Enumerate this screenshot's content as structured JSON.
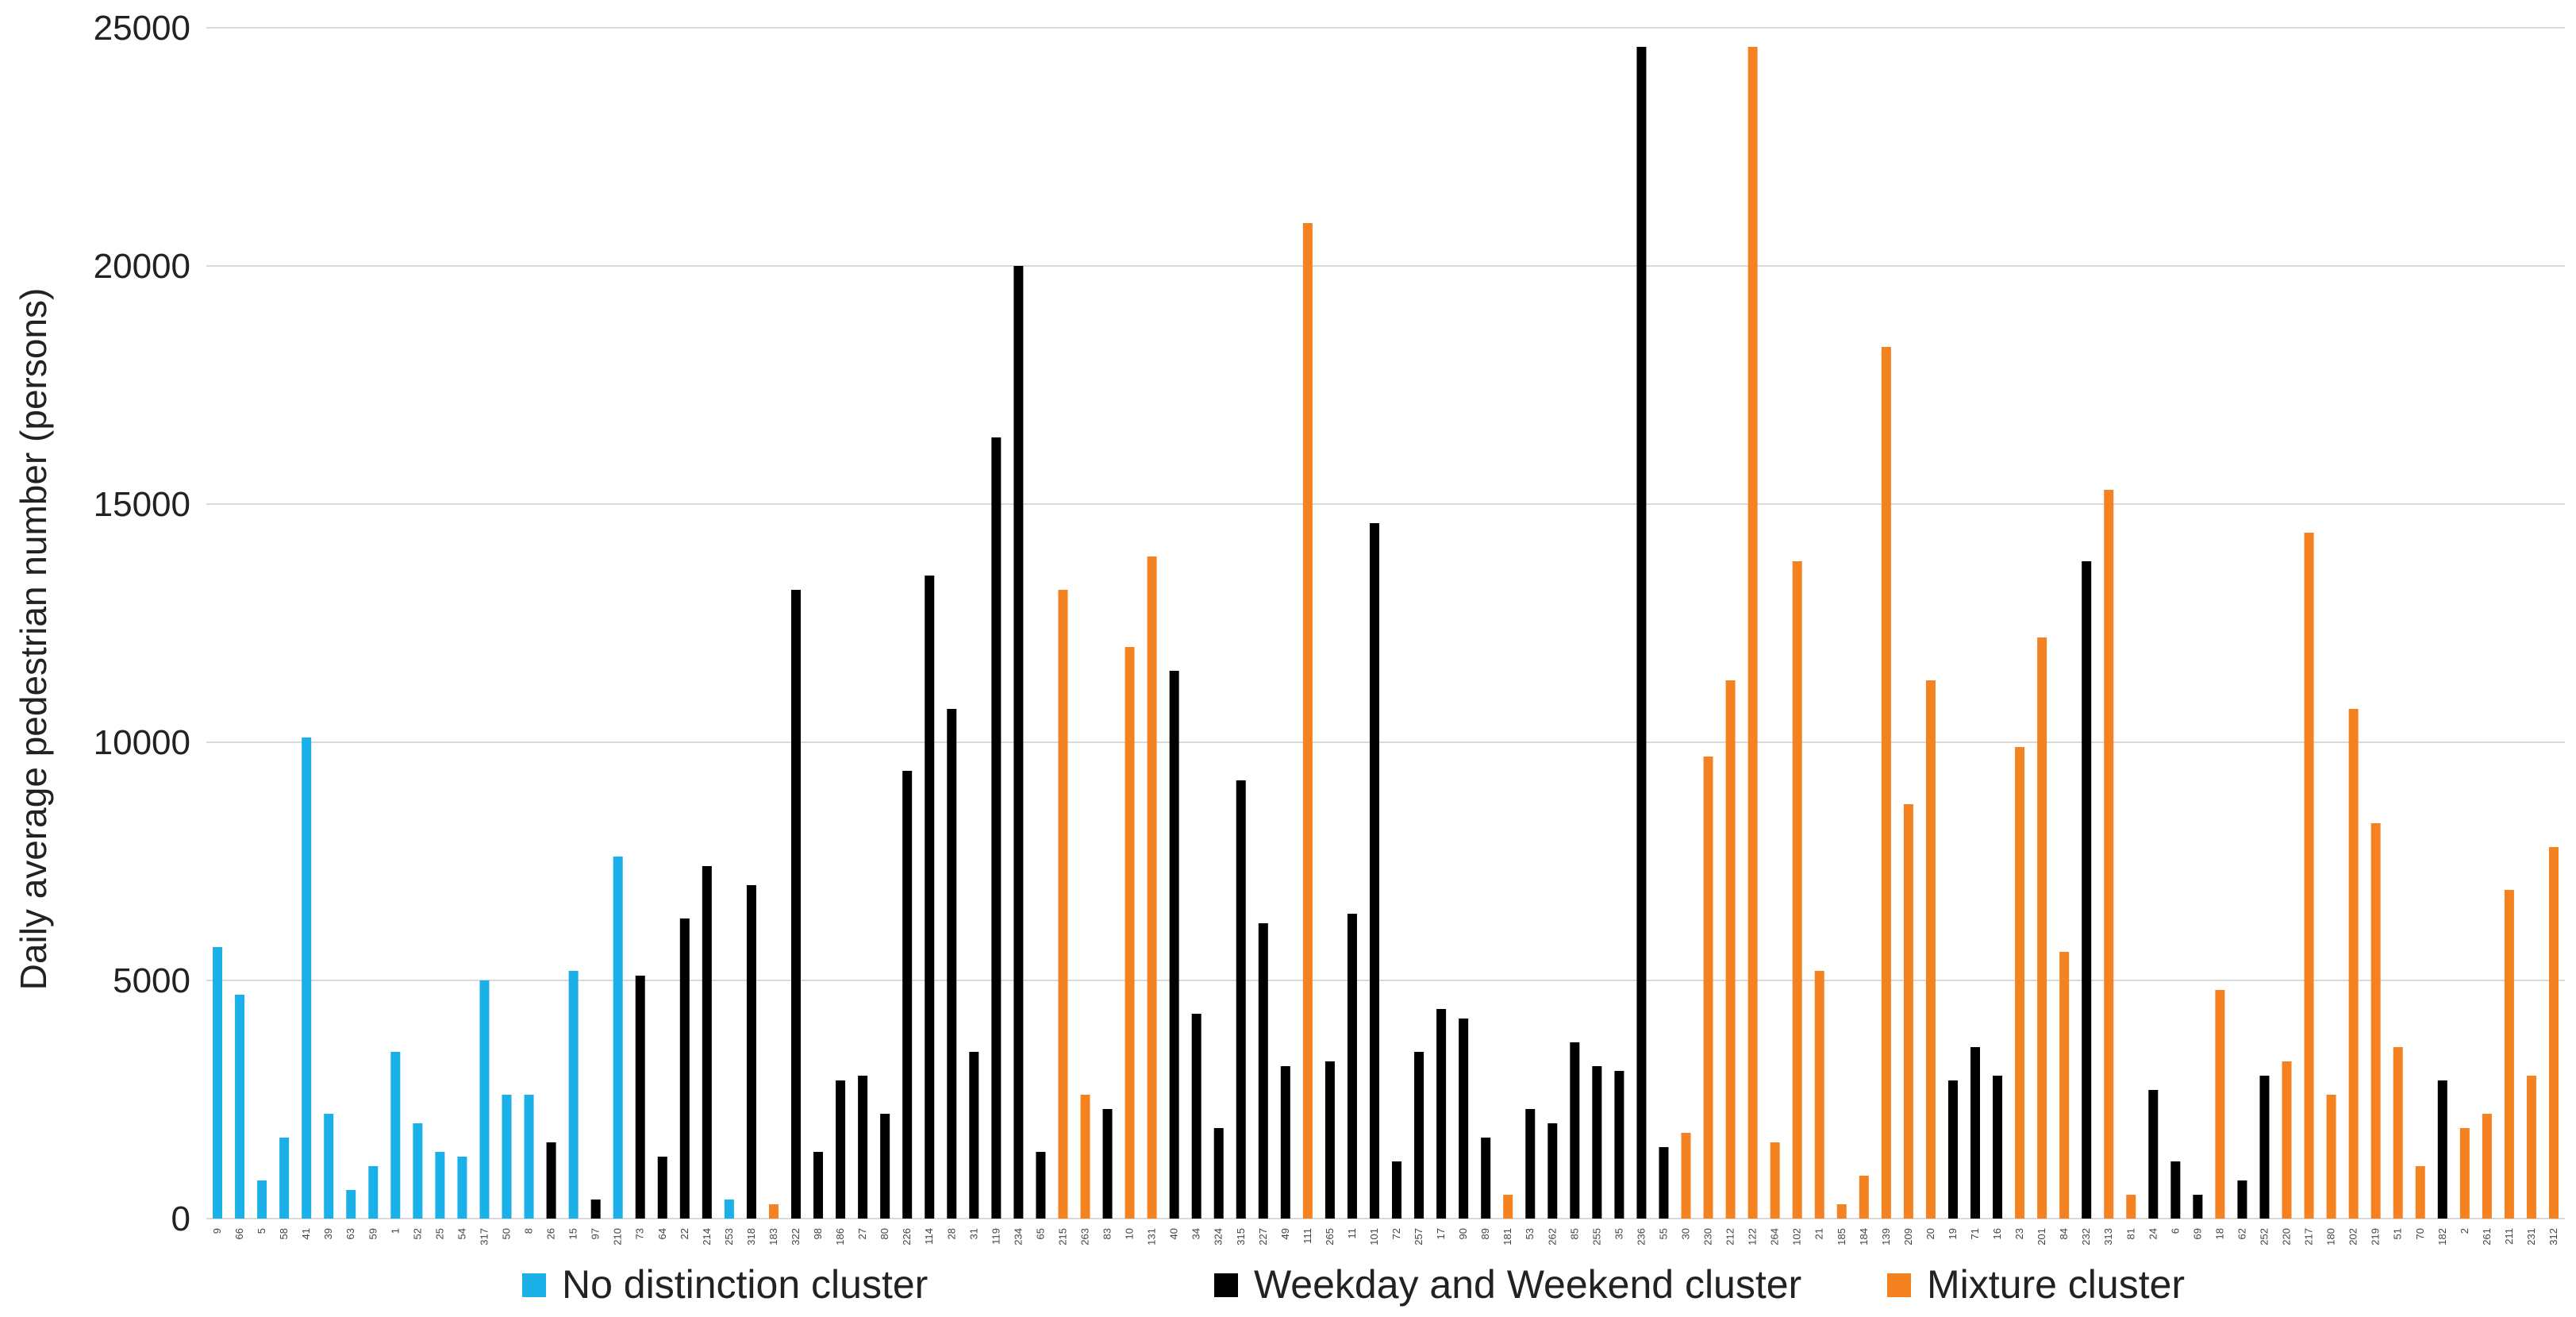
{
  "chart_data": {
    "type": "bar",
    "title": "",
    "xlabel": "",
    "ylabel": "Daily average pedestrian number (persons)",
    "ylim": [
      0,
      25000
    ],
    "yticks": [
      "0",
      "5000",
      "10000",
      "15000",
      "20000",
      "25000"
    ],
    "grid": "horizontal",
    "legend_position": "bottom",
    "colors": {
      "No distinction cluster": "#1cb0e8",
      "Weekday and Weekend cluster": "#000000",
      "Mixture cluster": "#f58220"
    },
    "legend": [
      {
        "name": "No distinction cluster",
        "color": "#1cb0e8"
      },
      {
        "name": "Weekday and Weekend cluster",
        "color": "#000000"
      },
      {
        "name": "Mixture cluster",
        "color": "#f58220"
      }
    ],
    "categories": [
      "9",
      "66",
      "5",
      "58",
      "41",
      "39",
      "63",
      "59",
      "1",
      "52",
      "25",
      "54",
      "317",
      "50",
      "8",
      "26",
      "15",
      "97",
      "210",
      "73",
      "64",
      "22",
      "214",
      "253",
      "318",
      "183",
      "322",
      "98",
      "186",
      "27",
      "80",
      "226",
      "114",
      "28",
      "31",
      "119",
      "234",
      "65",
      "215",
      "263",
      "83",
      "10",
      "131",
      "40",
      "34",
      "324",
      "315",
      "227",
      "49",
      "111",
      "265",
      "11",
      "101",
      "72",
      "257",
      "17",
      "90",
      "89",
      "181",
      "53",
      "262",
      "85",
      "255",
      "35",
      "236",
      "55",
      "30",
      "230",
      "212",
      "122",
      "264",
      "102",
      "21",
      "185",
      "184",
      "139",
      "209",
      "20",
      "19",
      "71",
      "16",
      "23",
      "201",
      "84",
      "232",
      "313",
      "81",
      "24",
      "6",
      "69",
      "18",
      "62",
      "252",
      "220",
      "217",
      "180",
      "202",
      "219",
      "51",
      "70",
      "182",
      "2",
      "261",
      "211",
      "231",
      "312"
    ],
    "values": [
      5700,
      4700,
      800,
      1700,
      10100,
      2200,
      600,
      1100,
      3500,
      2000,
      1400,
      1300,
      5000,
      2600,
      2600,
      1600,
      5200,
      400,
      7600,
      5100,
      1300,
      6300,
      7400,
      400,
      7000,
      300,
      13200,
      1400,
      2900,
      3000,
      2200,
      9400,
      13500,
      10700,
      3500,
      16400,
      20000,
      1400,
      13200,
      2600,
      2300,
      12000,
      13900,
      11500,
      4300,
      1900,
      9200,
      6200,
      3200,
      20900,
      3300,
      6400,
      14600,
      1200,
      3500,
      4400,
      4200,
      1700,
      500,
      2300,
      2000,
      3700,
      3200,
      3100,
      24600,
      1500,
      1800,
      9700,
      11300,
      24600,
      1600,
      13800,
      5200,
      300,
      900,
      18300,
      8700,
      11300,
      2900,
      3600,
      3000,
      9900,
      12200,
      5600,
      13800,
      15300,
      500,
      2700,
      1200,
      500,
      4800,
      800,
      3000,
      3300,
      14400,
      2600,
      10700,
      8300,
      3600,
      1100,
      2900,
      1900,
      2200,
      6900,
      3000,
      7800
    ],
    "series_by_category": [
      "No distinction cluster",
      "No distinction cluster",
      "No distinction cluster",
      "No distinction cluster",
      "No distinction cluster",
      "No distinction cluster",
      "No distinction cluster",
      "No distinction cluster",
      "No distinction cluster",
      "No distinction cluster",
      "No distinction cluster",
      "No distinction cluster",
      "No distinction cluster",
      "No distinction cluster",
      "No distinction cluster",
      "Weekday and Weekend cluster",
      "No distinction cluster",
      "Weekday and Weekend cluster",
      "No distinction cluster",
      "Weekday and Weekend cluster",
      "Weekday and Weekend cluster",
      "Weekday and Weekend cluster",
      "Weekday and Weekend cluster",
      "No distinction cluster",
      "Weekday and Weekend cluster",
      "Mixture cluster",
      "Weekday and Weekend cluster",
      "Weekday and Weekend cluster",
      "Weekday and Weekend cluster",
      "Weekday and Weekend cluster",
      "Weekday and Weekend cluster",
      "Weekday and Weekend cluster",
      "Weekday and Weekend cluster",
      "Weekday and Weekend cluster",
      "Weekday and Weekend cluster",
      "Weekday and Weekend cluster",
      "Weekday and Weekend cluster",
      "Weekday and Weekend cluster",
      "Mixture cluster",
      "Mixture cluster",
      "Weekday and Weekend cluster",
      "Mixture cluster",
      "Mixture cluster",
      "Weekday and Weekend cluster",
      "Weekday and Weekend cluster",
      "Weekday and Weekend cluster",
      "Weekday and Weekend cluster",
      "Weekday and Weekend cluster",
      "Weekday and Weekend cluster",
      "Mixture cluster",
      "Weekday and Weekend cluster",
      "Weekday and Weekend cluster",
      "Weekday and Weekend cluster",
      "Weekday and Weekend cluster",
      "Weekday and Weekend cluster",
      "Weekday and Weekend cluster",
      "Weekday and Weekend cluster",
      "Weekday and Weekend cluster",
      "Mixture cluster",
      "Weekday and Weekend cluster",
      "Weekday and Weekend cluster",
      "Weekday and Weekend cluster",
      "Weekday and Weekend cluster",
      "Weekday and Weekend cluster",
      "Weekday and Weekend cluster",
      "Weekday and Weekend cluster",
      "Mixture cluster",
      "Mixture cluster",
      "Mixture cluster",
      "Mixture cluster",
      "Mixture cluster",
      "Mixture cluster",
      "Mixture cluster",
      "Mixture cluster",
      "Mixture cluster",
      "Mixture cluster",
      "Mixture cluster",
      "Mixture cluster",
      "Weekday and Weekend cluster",
      "Weekday and Weekend cluster",
      "Weekday and Weekend cluster",
      "Mixture cluster",
      "Mixture cluster",
      "Mixture cluster",
      "Weekday and Weekend cluster",
      "Mixture cluster",
      "Mixture cluster",
      "Weekday and Weekend cluster",
      "Weekday and Weekend cluster",
      "Weekday and Weekend cluster",
      "Mixture cluster",
      "Weekday and Weekend cluster",
      "Weekday and Weekend cluster",
      "Mixture cluster",
      "Mixture cluster",
      "Mixture cluster",
      "Mixture cluster",
      "Mixture cluster",
      "Mixture cluster",
      "Mixture cluster",
      "Weekday and Weekend cluster",
      "Mixture cluster",
      "Mixture cluster",
      "Mixture cluster",
      "Mixture cluster",
      "Mixture cluster"
    ]
  }
}
